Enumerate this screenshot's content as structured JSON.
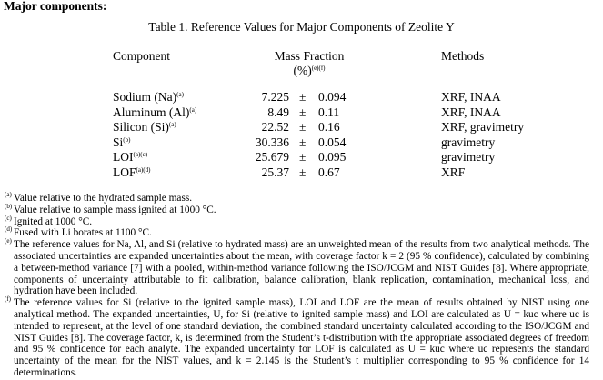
{
  "heading": "Major components:",
  "table": {
    "caption": "Table 1.  Reference Values for Major Components of Zeolite Y",
    "headers": {
      "component": "Component",
      "mass_fraction": "Mass Fraction",
      "unit": "(%)",
      "unit_notes": "(e)(f)",
      "methods": "Methods"
    },
    "pm": "±",
    "rows": [
      {
        "component": "Sodium (Na)",
        "note": "(a)",
        "value": "7.225",
        "unc": "0.094",
        "methods": "XRF, INAA"
      },
      {
        "component": "Aluminum (Al)",
        "note": "(a)",
        "value": "8.49",
        "unc": "0.11",
        "methods": "XRF, INAA"
      },
      {
        "component": "Silicon (Si)",
        "note": "(a)",
        "value": "22.52",
        "unc": "0.16",
        "methods": "XRF, gravimetry"
      },
      {
        "component": "Si",
        "note": "(b)",
        "value": "30.336",
        "unc": "0.054",
        "methods": "gravimetry"
      },
      {
        "component": "LOI",
        "note": "(a)(c)",
        "value": "25.679",
        "unc": "0.095",
        "methods": "gravimetry"
      },
      {
        "component": "LOF",
        "note": "(a)(d)",
        "value": "25.37",
        "unc": "0.67",
        "methods": "XRF"
      }
    ]
  },
  "footnotes": [
    {
      "mark": "(a)",
      "text": "Value relative to the hydrated sample mass."
    },
    {
      "mark": "(b)",
      "text": "Value relative to sample mass ignited at 1000 °C."
    },
    {
      "mark": "(c)",
      "text": "Ignited at 1000 °C."
    },
    {
      "mark": "(d)",
      "text": "Fused with Li borates at 1100 °C."
    },
    {
      "mark": "(e)",
      "text": "The reference values for Na, Al, and Si (relative to hydrated mass) are an unweighted mean of the results from two analytical methods.  The associated uncertainties are expanded uncertainties about the mean, with coverage factor k = 2 (95 % confidence), calculated by combining a between-method variance [7] with a pooled, within-method variance following the ISO/JCGM and NIST Guides [8].  Where appropriate, components of uncertainty attributable to fit calibration, balance calibration, blank replication, contamination, mechanical loss, and hydration have been included."
    },
    {
      "mark": "(f)",
      "text": "The reference values for Si (relative to the ignited sample mass), LOI and LOF are the mean of results obtained by NIST using one analytical method.  The expanded uncertainties, U, for Si (relative to ignited sample mass) and LOI are calculated as U = kuc where uc is intended to represent, at the level of one standard deviation, the combined standard uncertainty calculated according to the ISO/JCGM and NIST Guides [8].  The coverage factor, k, is determined from the Student’s t-distribution with the appropriate associated degrees of freedom and 95 % confidence for each analyte.  The expanded uncertainty for LOF is calculated as U = kuc where uc represents the standard uncertainty of the mean for the NIST values, and k = 2.145 is the Student’s t multiplier corresponding to 95 % confidence for 14 determinations."
    }
  ]
}
